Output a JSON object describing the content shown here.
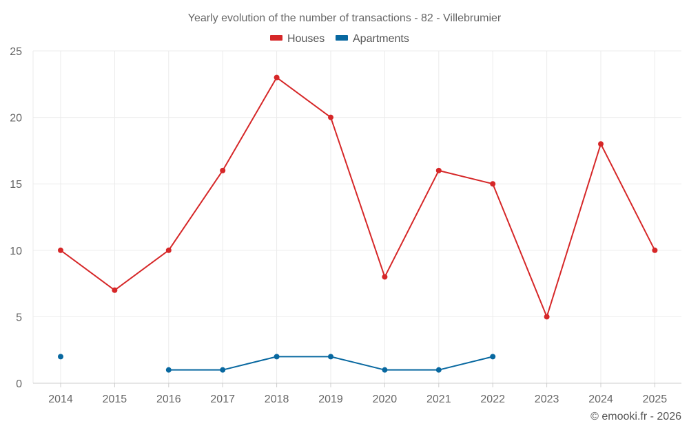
{
  "chart_data": {
    "type": "line",
    "title": "Yearly evolution of the number of transactions - 82 - Villebrumier",
    "xlabel": "",
    "ylabel": "",
    "ylim": [
      0,
      25
    ],
    "yticks": [
      "0",
      "5",
      "10",
      "15",
      "20",
      "25"
    ],
    "categories": [
      "2014",
      "2015",
      "2016",
      "2017",
      "2018",
      "2019",
      "2020",
      "2021",
      "2022",
      "2023",
      "2024",
      "2025"
    ],
    "series": [
      {
        "name": "Houses",
        "color": "#d62728",
        "values": [
          10,
          7,
          10,
          16,
          23,
          20,
          8,
          16,
          15,
          5,
          18,
          10
        ]
      },
      {
        "name": "Apartments",
        "color": "#0868a0",
        "values": [
          2,
          null,
          1,
          1,
          2,
          2,
          1,
          1,
          2,
          null,
          null,
          null
        ]
      }
    ],
    "grid": true,
    "legend_position": "top-center"
  },
  "credit": "© emooki.fr - 2026"
}
